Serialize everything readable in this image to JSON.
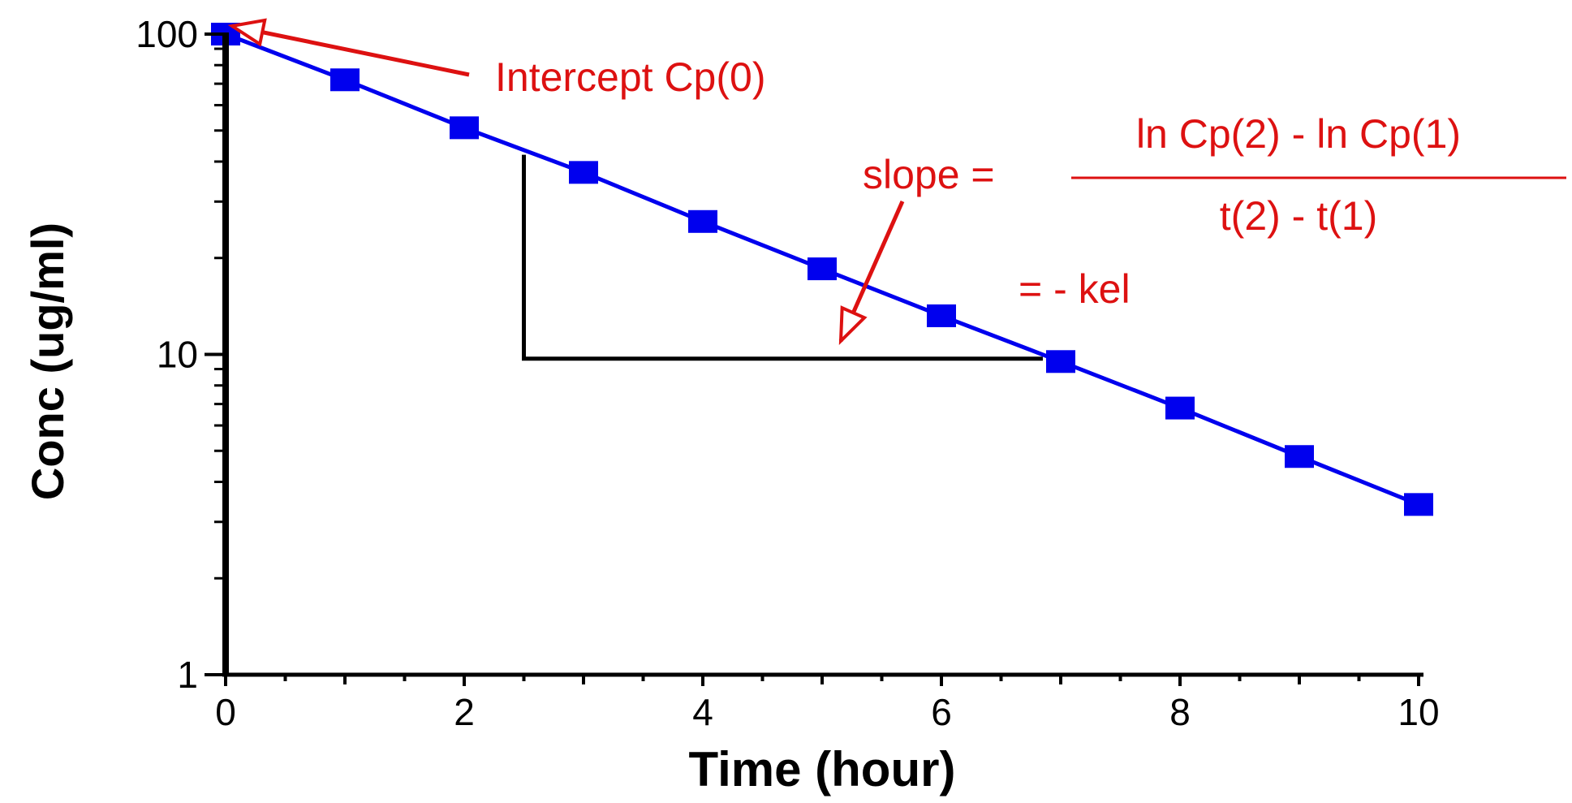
{
  "colors": {
    "series": "#0000ee",
    "annotation": "#dd1111",
    "axis": "#000000",
    "background": "#ffffff"
  },
  "chart_data": {
    "type": "scatter",
    "title": "",
    "xlabel": "Time (hour)",
    "ylabel": "Conc (ug/ml)",
    "xlim": [
      0,
      10
    ],
    "ylim": [
      1,
      100
    ],
    "y_scale": "log",
    "grid": false,
    "legend": "none",
    "x_ticks": [
      0,
      2,
      4,
      6,
      8,
      10
    ],
    "x_tick_labels": [
      "0",
      "2",
      "4",
      "6",
      "8",
      "10"
    ],
    "y_ticks": [
      1,
      10,
      100
    ],
    "y_tick_labels": [
      "1",
      "10",
      "100"
    ],
    "series": [
      {
        "x": [
          0,
          1,
          2,
          3,
          4,
          5,
          6,
          7,
          8,
          9,
          10
        ],
        "y": [
          100,
          72,
          51,
          37,
          26,
          18.5,
          13.2,
          9.5,
          6.8,
          4.8,
          3.4
        ],
        "marker": "square",
        "line": true
      }
    ],
    "annotations": {
      "intercept_label": "Intercept Cp(0)",
      "slope_prefix": "slope =",
      "slope_numerator": "ln Cp(2) - ln Cp(1)",
      "slope_denominator": "t(2) - t(1)",
      "slope_result": "= - kel"
    },
    "slope_triangle": {
      "x1": 2.5,
      "y1": 42,
      "x2": 6.85,
      "y2": 9.7
    }
  }
}
